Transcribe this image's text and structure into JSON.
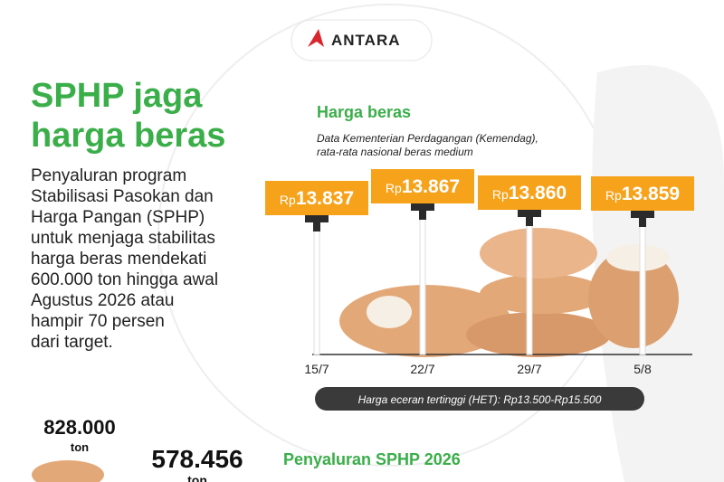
{
  "header": {
    "brand": "ANTARA",
    "title": [
      "SPHP jaga",
      "harga beras"
    ]
  },
  "body": [
    "Penyaluran program",
    "Stabilisasi Pasokan dan",
    "Harga Pangan (SPHP)",
    "untuk menjaga stabilitas",
    "harga beras mendekati",
    "600.000 ton hingga awal",
    "Agustus 2026 atau",
    "hampir 70 persen",
    "dari target."
  ],
  "price_chart": {
    "title": "Harga beras",
    "subtitle": [
      "Data Kementerian Perdagangan (Kemendag),",
      "rata-rata nasional beras medium"
    ],
    "currency": "Rp",
    "points": [
      {
        "date": "15/7",
        "price": "13.837"
      },
      {
        "date": "22/7",
        "price": "13.867"
      },
      {
        "date": "29/7",
        "price": "13.860"
      },
      {
        "date": "5/8",
        "price": "13.859"
      }
    ],
    "note": "Harga eceran tertinggi (HET): Rp13.500-Rp15.500"
  },
  "stats": {
    "target": {
      "value": "828.000",
      "unit": "ton"
    },
    "realized": {
      "value": "578.456",
      "unit": "ton"
    },
    "section_title": "Penyaluran SPHP 2026"
  }
}
